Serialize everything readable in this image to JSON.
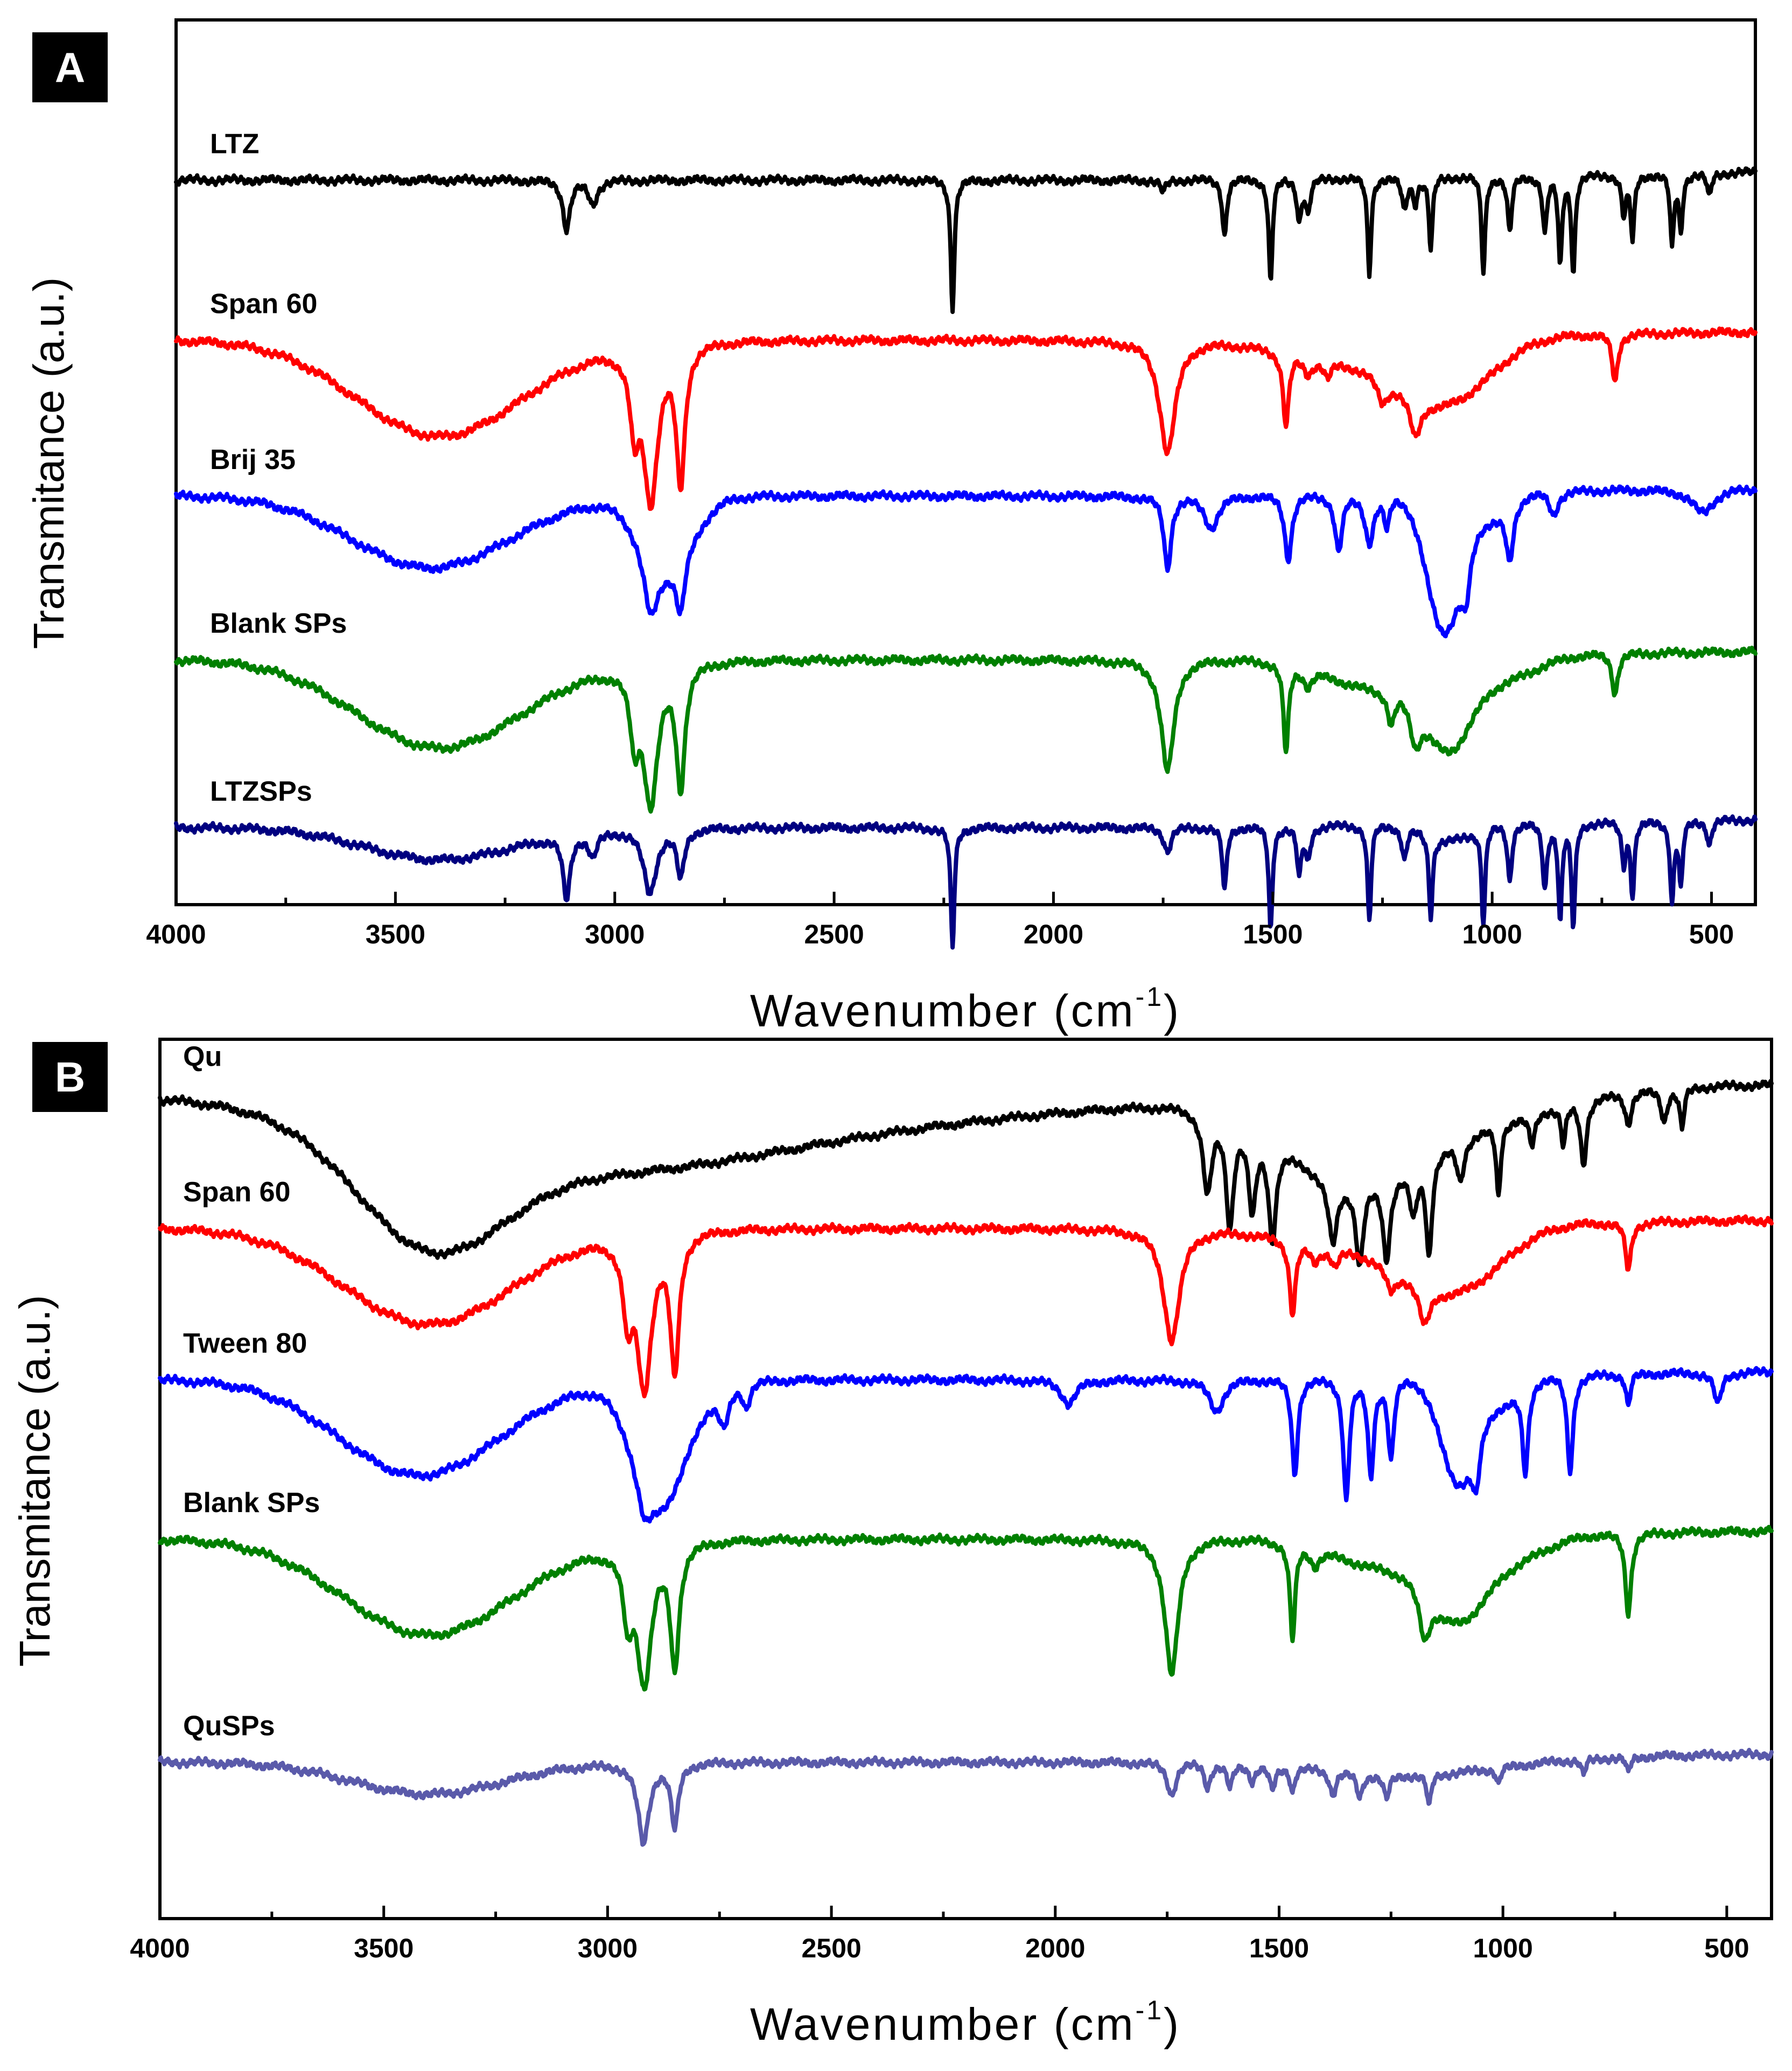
{
  "chart_data": [
    {
      "panel": "A",
      "type": "line",
      "xlabel": "Wavenumber (cm",
      "xlabel_sup": "-1",
      "xlabel_end": ")",
      "ylabel": "Transmitance (a.u.)",
      "xlim": [
        4000,
        400
      ],
      "xticks": [
        4000,
        3500,
        3000,
        2500,
        2000,
        1500,
        1000,
        500
      ],
      "series": [
        {
          "name": "LTZ",
          "color": "#000000",
          "baseline": 0.16,
          "broad": [],
          "peaks": [
            [
              3110,
              10,
              0.06
            ],
            [
              3050,
              12,
              0.03
            ],
            [
              2230,
              5,
              0.16
            ],
            [
              1750,
              8,
              0.015
            ],
            [
              1610,
              6,
              0.07
            ],
            [
              1505,
              5,
              0.13
            ],
            [
              1440,
              6,
              0.05
            ],
            [
              1420,
              7,
              0.04
            ],
            [
              1280,
              5,
              0.12
            ],
            [
              1200,
              7,
              0.04
            ],
            [
              1175,
              6,
              0.03
            ],
            [
              1140,
              5,
              0.09
            ],
            [
              1020,
              5,
              0.12
            ],
            [
              960,
              6,
              0.07
            ],
            [
              880,
              6,
              0.07
            ],
            [
              845,
              5,
              0.11
            ],
            [
              815,
              5,
              0.12
            ],
            [
              700,
              6,
              0.05
            ],
            [
              680,
              5,
              0.08
            ],
            [
              590,
              5,
              0.09
            ],
            [
              570,
              5,
              0.07
            ],
            [
              505,
              6,
              0.03
            ]
          ]
        },
        {
          "name": "Span 60",
          "color": "#ff0000",
          "baseline": 0.36,
          "broad": [
            [
              3400,
              190,
              0.12
            ],
            [
              1100,
              100,
              0.07
            ],
            [
              1300,
              160,
              0.03
            ]
          ],
          "peaks": [
            [
              2955,
              12,
              0.09
            ],
            [
              2918,
              20,
              0.19
            ],
            [
              2850,
              12,
              0.17
            ],
            [
              1740,
              22,
              0.14
            ],
            [
              1470,
              8,
              0.09
            ],
            [
              1420,
              12,
              0.02
            ],
            [
              1375,
              10,
              0.02
            ],
            [
              1250,
              15,
              0.03
            ],
            [
              1175,
              15,
              0.05
            ],
            [
              720,
              8,
              0.06
            ]
          ]
        },
        {
          "name": "Brij 35",
          "color": "#0000ff",
          "baseline": 0.555,
          "broad": [
            [
              3420,
              180,
              0.09
            ],
            [
              1110,
              40,
              0.17
            ],
            [
              1000,
              40,
              0.03
            ],
            [
              2880,
              60,
              0.08
            ]
          ],
          "peaks": [
            [
              2918,
              20,
              0.08
            ],
            [
              2850,
              12,
              0.07
            ],
            [
              1740,
              10,
              0.09
            ],
            [
              1640,
              20,
              0.04
            ],
            [
              1465,
              10,
              0.08
            ],
            [
              1350,
              10,
              0.07
            ],
            [
              1280,
              12,
              0.06
            ],
            [
              1240,
              8,
              0.04
            ],
            [
              1060,
              12,
              0.06
            ],
            [
              960,
              10,
              0.07
            ],
            [
              860,
              12,
              0.03
            ],
            [
              520,
              30,
              0.03
            ]
          ]
        },
        {
          "name": "Blank SPs",
          "color": "#008000",
          "baseline": 0.76,
          "broad": [
            [
              3400,
              190,
              0.11
            ],
            [
              1100,
              50,
              0.09
            ],
            [
              1250,
              120,
              0.04
            ],
            [
              980,
              80,
              0.03
            ]
          ],
          "peaks": [
            [
              2955,
              12,
              0.08
            ],
            [
              2918,
              20,
              0.17
            ],
            [
              2850,
              12,
              0.15
            ],
            [
              1740,
              18,
              0.14
            ],
            [
              1470,
              7,
              0.11
            ],
            [
              1420,
              12,
              0.02
            ],
            [
              1230,
              10,
              0.04
            ],
            [
              1175,
              15,
              0.05
            ],
            [
              720,
              8,
              0.05
            ]
          ]
        },
        {
          "name": "LTZSPs",
          "color": "#000080",
          "baseline": 0.97,
          "broad": [
            [
              3400,
              170,
              0.04
            ],
            [
              1100,
              50,
              0.02
            ]
          ],
          "peaks": [
            [
              3110,
              10,
              0.08
            ],
            [
              3050,
              12,
              0.03
            ],
            [
              2920,
              18,
              0.08
            ],
            [
              2850,
              10,
              0.06
            ],
            [
              2230,
              5,
              0.15
            ],
            [
              1740,
              10,
              0.03
            ],
            [
              1610,
              6,
              0.08
            ],
            [
              1505,
              5,
              0.13
            ],
            [
              1440,
              6,
              0.06
            ],
            [
              1420,
              7,
              0.04
            ],
            [
              1280,
              5,
              0.12
            ],
            [
              1200,
              7,
              0.04
            ],
            [
              1140,
              5,
              0.1
            ],
            [
              1020,
              5,
              0.12
            ],
            [
              960,
              6,
              0.07
            ],
            [
              880,
              6,
              0.08
            ],
            [
              845,
              5,
              0.12
            ],
            [
              815,
              5,
              0.13
            ],
            [
              700,
              6,
              0.05
            ],
            [
              680,
              5,
              0.09
            ],
            [
              590,
              5,
              0.1
            ],
            [
              570,
              5,
              0.08
            ],
            [
              505,
              6,
              0.03
            ]
          ]
        }
      ]
    },
    {
      "panel": "B",
      "type": "line",
      "xlabel": "Wavenumber (cm",
      "xlabel_sup": "-1",
      "xlabel_end": ")",
      "ylabel": "Transmitance (a.u.)",
      "xlim": [
        4000,
        400
      ],
      "xticks": [
        4000,
        3500,
        3000,
        2500,
        2000,
        1500,
        1000,
        500
      ],
      "series": [
        {
          "name": "Qu",
          "color": "#000000",
          "baseline": 0.03,
          "broad": [
            [
              3400,
              160,
              0.13
            ],
            [
              3100,
              400,
              0.07
            ],
            [
              2600,
              600,
              0.04
            ],
            [
              1350,
              150,
              0.09
            ],
            [
              1100,
              200,
              0.04
            ]
          ],
          "peaks": [
            [
              1660,
              12,
              0.1
            ],
            [
              1610,
              10,
              0.13
            ],
            [
              1560,
              10,
              0.1
            ],
            [
              1515,
              10,
              0.12
            ],
            [
              1380,
              12,
              0.08
            ],
            [
              1320,
              10,
              0.1
            ],
            [
              1260,
              10,
              0.1
            ],
            [
              1200,
              10,
              0.06
            ],
            [
              1165,
              8,
              0.12
            ],
            [
              1095,
              10,
              0.05
            ],
            [
              1010,
              6,
              0.09
            ],
            [
              935,
              8,
              0.04
            ],
            [
              865,
              6,
              0.05
            ],
            [
              820,
              8,
              0.08
            ],
            [
              720,
              8,
              0.04
            ],
            [
              640,
              8,
              0.04
            ],
            [
              600,
              6,
              0.05
            ]
          ]
        },
        {
          "name": "Span 60",
          "color": "#ff0000",
          "baseline": 0.2,
          "broad": [
            [
              3400,
              190,
              0.12
            ],
            [
              1100,
              100,
              0.07
            ],
            [
              1300,
              160,
              0.03
            ]
          ],
          "peaks": [
            [
              2955,
              12,
              0.09
            ],
            [
              2918,
              20,
              0.19
            ],
            [
              2850,
              12,
              0.17
            ],
            [
              1740,
              22,
              0.14
            ],
            [
              1470,
              8,
              0.09
            ],
            [
              1420,
              12,
              0.02
            ],
            [
              1375,
              10,
              0.02
            ],
            [
              1250,
              15,
              0.03
            ],
            [
              1175,
              15,
              0.05
            ],
            [
              720,
              8,
              0.06
            ]
          ]
        },
        {
          "name": "Tween 80",
          "color": "#0000ff",
          "baseline": 0.39,
          "broad": [
            [
              3420,
              180,
              0.12
            ],
            [
              2880,
              60,
              0.15
            ],
            [
              1100,
              40,
              0.13
            ],
            [
              1000,
              40,
              0.03
            ]
          ],
          "peaks": [
            [
              2918,
              20,
              0.05
            ],
            [
              2740,
              15,
              0.05
            ],
            [
              2690,
              10,
              0.03
            ],
            [
              1970,
              20,
              0.03
            ],
            [
              1640,
              20,
              0.04
            ],
            [
              1465,
              8,
              0.12
            ],
            [
              1350,
              8,
              0.15
            ],
            [
              1295,
              8,
              0.12
            ],
            [
              1250,
              8,
              0.1
            ],
            [
              1060,
              10,
              0.06
            ],
            [
              950,
              8,
              0.11
            ],
            [
              850,
              8,
              0.12
            ],
            [
              720,
              6,
              0.04
            ],
            [
              520,
              10,
              0.04
            ]
          ]
        },
        {
          "name": "Blank SPs",
          "color": "#008000",
          "baseline": 0.59,
          "broad": [
            [
              3400,
              190,
              0.12
            ],
            [
              1100,
              60,
              0.08
            ],
            [
              1250,
              120,
              0.04
            ],
            [
              980,
              80,
              0.03
            ]
          ],
          "peaks": [
            [
              2955,
              12,
              0.08
            ],
            [
              2918,
              20,
              0.17
            ],
            [
              2850,
              12,
              0.15
            ],
            [
              1740,
              18,
              0.17
            ],
            [
              1470,
              7,
              0.12
            ],
            [
              1420,
              12,
              0.02
            ],
            [
              1175,
              15,
              0.06
            ],
            [
              720,
              8,
              0.1
            ]
          ]
        },
        {
          "name": "QuSPs",
          "color": "#5a5aaa",
          "baseline": 0.87,
          "broad": [
            [
              3400,
              170,
              0.04
            ],
            [
              1200,
              200,
              0.02
            ]
          ],
          "peaks": [
            [
              2920,
              15,
              0.1
            ],
            [
              2850,
              10,
              0.08
            ],
            [
              1740,
              12,
              0.04
            ],
            [
              1660,
              8,
              0.03
            ],
            [
              1610,
              8,
              0.03
            ],
            [
              1560,
              8,
              0.02
            ],
            [
              1515,
              8,
              0.03
            ],
            [
              1470,
              6,
              0.03
            ],
            [
              1380,
              8,
              0.03
            ],
            [
              1320,
              8,
              0.03
            ],
            [
              1260,
              8,
              0.03
            ],
            [
              1165,
              6,
              0.04
            ],
            [
              1010,
              6,
              0.02
            ],
            [
              820,
              6,
              0.02
            ],
            [
              720,
              6,
              0.02
            ]
          ]
        }
      ]
    }
  ]
}
